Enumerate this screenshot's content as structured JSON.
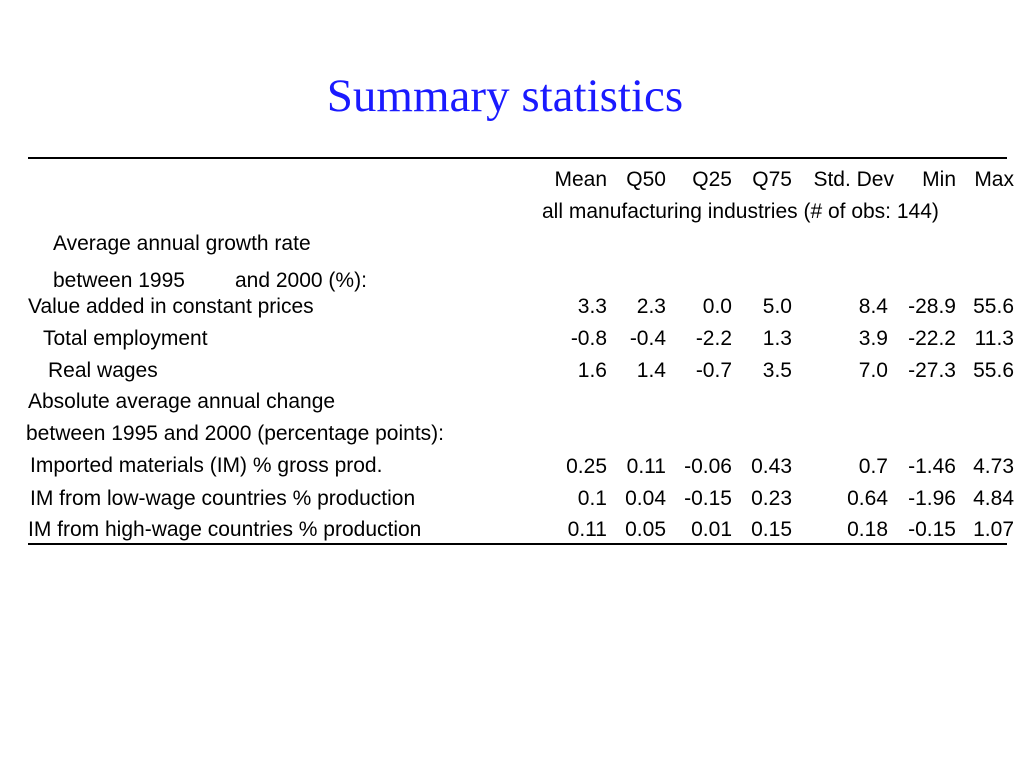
{
  "title": "Summary statistics",
  "columns": [
    "Mean",
    "Q50",
    "Q25",
    "Q75",
    "Std. Dev",
    "Min",
    "Max"
  ],
  "subheader": "all manufacturing industries (# of obs: 144)",
  "section1": {
    "heading_line1": "Average annual growth rate",
    "heading_line2_a": "between 1995",
    "heading_line2_b": "and 2000 (%):"
  },
  "section2": {
    "heading_line1": "Absolute average annual change",
    "heading_line2": "between 1995 and 2000 (percentage points):"
  },
  "rows": [
    {
      "label": "Value added in constant prices",
      "values": [
        "3.3",
        "2.3",
        "0.0",
        "5.0",
        "8.4",
        "-28.9",
        "55.6"
      ]
    },
    {
      "label": "Total employment",
      "values": [
        "-0.8",
        "-0.4",
        "-2.2",
        "1.3",
        "3.9",
        "-22.2",
        "11.3"
      ]
    },
    {
      "label": "Real wages",
      "values": [
        "1.6",
        "1.4",
        "-0.7",
        "3.5",
        "7.0",
        "-27.3",
        "55.6"
      ]
    },
    {
      "label": "Imported materials (IM) % gross prod.",
      "values": [
        "0.25",
        "0.11",
        "-0.06",
        "0.43",
        "0.7",
        "-1.46",
        "4.73"
      ]
    },
    {
      "label": "IM from low-wage countries % production",
      "values": [
        "0.1",
        "0.04",
        "-0.15",
        "0.23",
        "0.64",
        "-1.96",
        "4.84"
      ]
    },
    {
      "label": "IM from high-wage countries % production",
      "values": [
        "0.11",
        "0.05",
        "0.01",
        "0.15",
        "0.18",
        "-0.15",
        "1.07"
      ]
    }
  ]
}
